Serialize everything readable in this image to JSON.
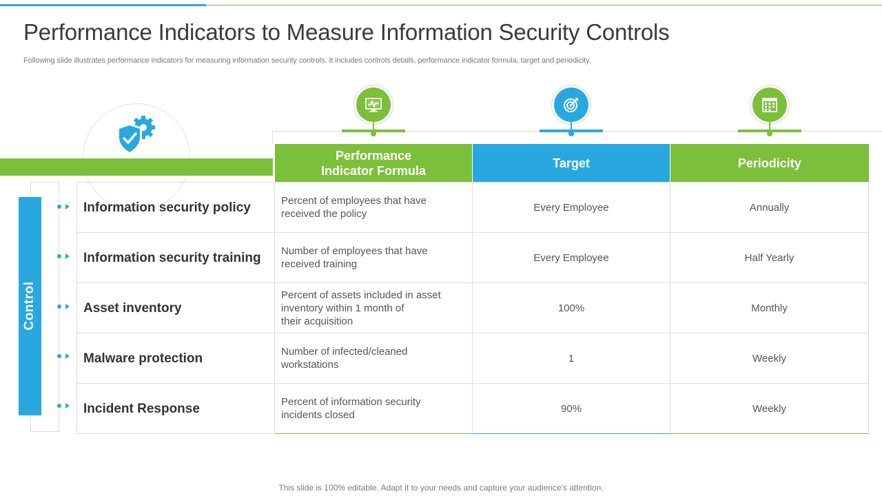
{
  "slide": {
    "title": "Performance Indicators to Measure Information Security Controls",
    "subtitle": "Following slide illustrates performance indicators for measuring information security controls. It includes controls details, performance indicator formula, target and periodicity.",
    "footer": "This slide is 100% editable. Adapt it to your needs and capture your audience's attention."
  },
  "colors": {
    "accent_green": "#7cbf3a",
    "accent_blue": "#29a8e0",
    "border_gray": "#dcdcdc"
  },
  "icons": {
    "left": "shield-gear-icon",
    "col1": "monitor-dashboard-icon",
    "col2": "target-icon",
    "col3": "calendar-icon"
  },
  "side_label": "Control",
  "table": {
    "headers": {
      "formula_line1": "Performance",
      "formula_line2": "Indicator Formula",
      "target": "Target",
      "periodicity": "Periodicity"
    },
    "rows": [
      {
        "control": "Information security policy",
        "formula_line1": "Percent of employees that have",
        "formula_line2": "received the policy",
        "formula_line3": "",
        "target": "Every Employee",
        "periodicity": "Annually"
      },
      {
        "control": "Information security training",
        "formula_line1": "Number of employees that have",
        "formula_line2": "received training",
        "formula_line3": "",
        "target": "Every Employee",
        "periodicity": "Half Yearly"
      },
      {
        "control": "Asset inventory",
        "formula_line1": "Percent of assets included in asset",
        "formula_line2": "inventory within 1 month of",
        "formula_line3": "their acquisition",
        "target": "100%",
        "periodicity": "Monthly"
      },
      {
        "control": "Malware protection",
        "formula_line1": "Number of infected/cleaned",
        "formula_line2": "workstations",
        "formula_line3": "",
        "target": "1",
        "periodicity": "Weekly"
      },
      {
        "control": "Incident Response",
        "formula_line1": "Percent of information security",
        "formula_line2": "incidents closed",
        "formula_line3": "",
        "target": "90%",
        "periodicity": "Weekly"
      }
    ]
  }
}
